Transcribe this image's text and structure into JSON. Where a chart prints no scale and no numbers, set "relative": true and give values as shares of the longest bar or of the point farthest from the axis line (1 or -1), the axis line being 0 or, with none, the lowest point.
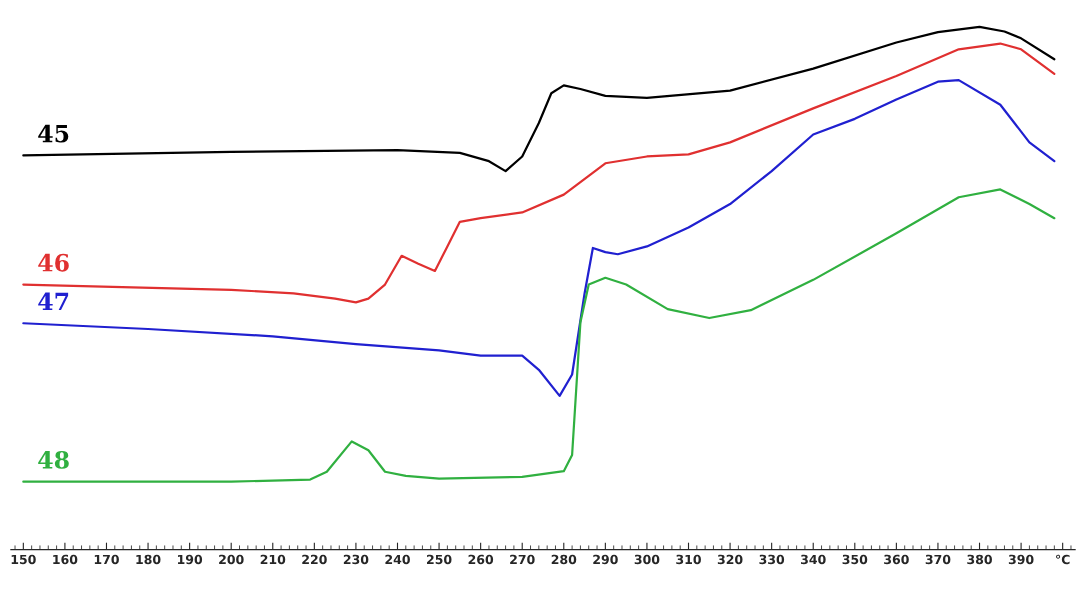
{
  "chart_data": {
    "type": "line",
    "relative": true,
    "xlim": [
      147,
      403
    ],
    "xticks": [
      150,
      160,
      170,
      180,
      190,
      200,
      210,
      220,
      230,
      240,
      250,
      260,
      270,
      280,
      290,
      300,
      310,
      320,
      330,
      340,
      350,
      360,
      370,
      380,
      390,
      {
        "value": 400,
        "label": "°C"
      }
    ],
    "grid": false,
    "legend": false,
    "marker": "none",
    "line_style": "solid",
    "series": [
      {
        "name": "45",
        "color": "#000000",
        "x": [
          150,
          200,
          240,
          255,
          262,
          266,
          270,
          274,
          277,
          280,
          284,
          290,
          300,
          320,
          340,
          360,
          370,
          380,
          386,
          390,
          398
        ],
        "values": [
          0.754,
          0.761,
          0.764,
          0.759,
          0.743,
          0.724,
          0.752,
          0.816,
          0.873,
          0.888,
          0.881,
          0.868,
          0.864,
          0.878,
          0.92,
          0.97,
          0.99,
          1.0,
          0.991,
          0.978,
          0.938
        ]
      },
      {
        "name": "46",
        "color": "#e03030",
        "x": [
          150,
          200,
          215,
          225,
          230,
          233,
          237,
          241,
          245,
          249,
          252,
          255,
          260,
          270,
          280,
          290,
          300,
          310,
          320,
          340,
          360,
          375,
          385,
          390,
          398
        ],
        "values": [
          0.507,
          0.497,
          0.49,
          0.48,
          0.473,
          0.48,
          0.507,
          0.562,
          0.547,
          0.533,
          0.58,
          0.627,
          0.634,
          0.645,
          0.679,
          0.739,
          0.752,
          0.756,
          0.779,
          0.844,
          0.906,
          0.957,
          0.968,
          0.957,
          0.91
        ]
      },
      {
        "name": "47",
        "color": "#2020d0",
        "x": [
          150,
          180,
          210,
          230,
          250,
          260,
          270,
          274,
          279,
          282,
          285,
          287,
          290,
          293,
          300,
          310,
          320,
          330,
          340,
          350,
          360,
          370,
          375,
          385,
          392,
          398
        ],
        "values": [
          0.433,
          0.422,
          0.408,
          0.393,
          0.381,
          0.371,
          0.371,
          0.344,
          0.294,
          0.335,
          0.49,
          0.577,
          0.569,
          0.565,
          0.58,
          0.616,
          0.661,
          0.724,
          0.794,
          0.824,
          0.861,
          0.895,
          0.898,
          0.851,
          0.779,
          0.743
        ]
      },
      {
        "name": "48",
        "color": "#30b040",
        "x": [
          150,
          200,
          219,
          223,
          229,
          233,
          237,
          242,
          250,
          270,
          280,
          282,
          284,
          286,
          290,
          295,
          305,
          315,
          325,
          340,
          360,
          375,
          385,
          392,
          398
        ],
        "values": [
          0.13,
          0.13,
          0.134,
          0.149,
          0.207,
          0.19,
          0.149,
          0.141,
          0.136,
          0.139,
          0.15,
          0.181,
          0.435,
          0.507,
          0.52,
          0.507,
          0.46,
          0.443,
          0.458,
          0.516,
          0.605,
          0.674,
          0.689,
          0.661,
          0.634
        ]
      }
    ]
  }
}
